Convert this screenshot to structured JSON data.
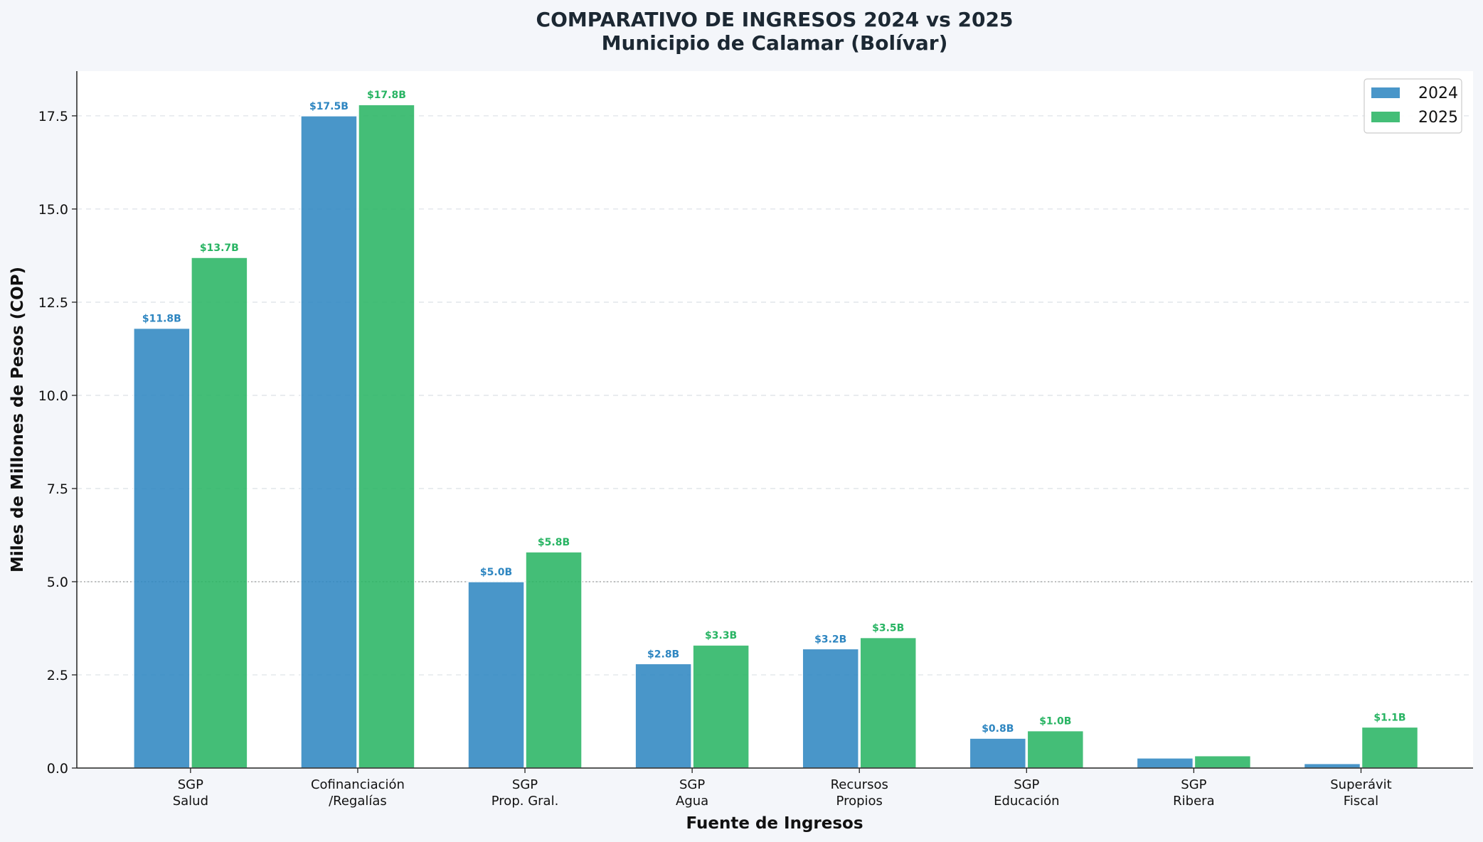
{
  "chart_data": {
    "type": "bar",
    "title": "COMPARATIVO DE INGRESOS 2024 vs 2025",
    "subtitle": "Municipio de Calamar (Bolívar)",
    "xlabel": "Fuente de Ingresos",
    "ylabel": "Miles de Millones de Pesos (COP)",
    "ylim": [
      0,
      18.7
    ],
    "yticks": [
      "0.0",
      "2.5",
      "5.0",
      "7.5",
      "10.0",
      "12.5",
      "15.0",
      "17.5"
    ],
    "ytick_values": [
      0,
      2.5,
      5,
      7.5,
      10,
      12.5,
      15,
      17.5
    ],
    "grid": "horizontal dashed",
    "reference_line": 5.0,
    "legend_position": "top-right",
    "categories": [
      [
        "SGP",
        "Salud"
      ],
      [
        "Cofinanciación",
        "/Regalías"
      ],
      [
        "SGP",
        "Prop. Gral."
      ],
      [
        "SGP",
        "Agua"
      ],
      [
        "Recursos",
        "Propios"
      ],
      [
        "SGP",
        "Educación"
      ],
      [
        "SGP",
        "Ribera"
      ],
      [
        "Superávit",
        "Fiscal"
      ]
    ],
    "series": [
      {
        "name": "2024",
        "color": "#2e86c1",
        "values": [
          11.8,
          17.5,
          5.0,
          2.8,
          3.2,
          0.8,
          0.27,
          0.12
        ],
        "labels": [
          "$11.8B",
          "$17.5B",
          "$5.0B",
          "$2.8B",
          "$3.2B",
          "$0.8B",
          "",
          ""
        ]
      },
      {
        "name": "2025",
        "color": "#28b463",
        "values": [
          13.7,
          17.8,
          5.8,
          3.3,
          3.5,
          1.0,
          0.33,
          1.1
        ],
        "labels": [
          "$13.7B",
          "$17.8B",
          "$5.8B",
          "$3.3B",
          "$3.5B",
          "$1.0B",
          "",
          "$1.1B"
        ]
      }
    ]
  }
}
